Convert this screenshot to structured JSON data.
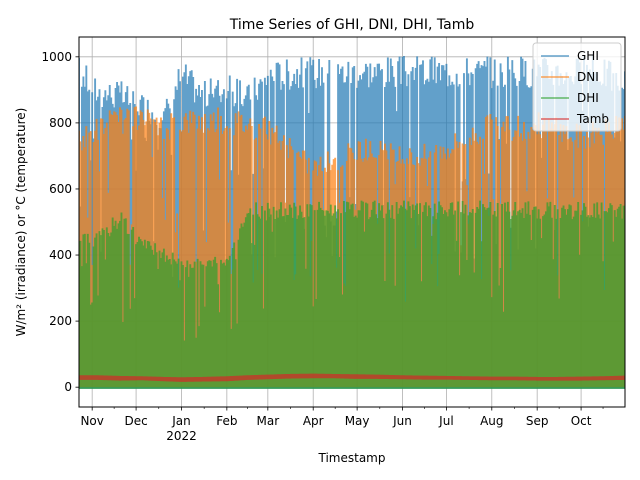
{
  "chart_data": {
    "type": "area",
    "title": "Time Series of GHI, DNI, DHI, Tamb",
    "xlabel": "Timestamp",
    "ylabel": "W/m² (irradiance) or °C (temperature)",
    "ylim": [
      -60,
      1060
    ],
    "yticks": [
      0,
      200,
      400,
      600,
      800,
      1000
    ],
    "xlim": [
      "2021-10-23",
      "2022-10-31"
    ],
    "xticks": [
      {
        "date": "2021-11-01",
        "label": "Nov"
      },
      {
        "date": "2021-12-01",
        "label": "Dec"
      },
      {
        "date": "2022-01-01",
        "label": "Jan",
        "sublabel": "2022"
      },
      {
        "date": "2022-02-01",
        "label": "Feb"
      },
      {
        "date": "2022-03-01",
        "label": "Mar"
      },
      {
        "date": "2022-04-01",
        "label": "Apr"
      },
      {
        "date": "2022-05-01",
        "label": "May"
      },
      {
        "date": "2022-06-01",
        "label": "Jun"
      },
      {
        "date": "2022-07-01",
        "label": "Jul"
      },
      {
        "date": "2022-08-01",
        "label": "Aug"
      },
      {
        "date": "2022-09-01",
        "label": "Sep"
      },
      {
        "date": "2022-10-01",
        "label": "Oct"
      }
    ],
    "grid": true,
    "legend_position": "top-right",
    "series": [
      {
        "name": "GHI",
        "color": "#1f77b4",
        "min": -5,
        "x": [
          "2021-10-23",
          "2021-11-05",
          "2021-11-20",
          "2021-12-05",
          "2021-12-20",
          "2022-01-01",
          "2022-01-15",
          "2022-02-01",
          "2022-02-15",
          "2022-03-01",
          "2022-03-15",
          "2022-04-01",
          "2022-04-15",
          "2022-05-01",
          "2022-05-15",
          "2022-06-01",
          "2022-06-15",
          "2022-07-01",
          "2022-07-15",
          "2022-08-01",
          "2022-08-15",
          "2022-09-01",
          "2022-09-15",
          "2022-10-01",
          "2022-10-15",
          "2022-10-31"
        ],
        "max": [
          1005,
          940,
          930,
          900,
          860,
          1000,
          930,
          950,
          920,
          990,
          1000,
          1005,
          1000,
          1005,
          1005,
          1005,
          1005,
          1005,
          1005,
          1005,
          1005,
          1005,
          1005,
          1005,
          1005,
          970
        ]
      },
      {
        "name": "DNI",
        "color": "#ff7f0e",
        "min": 0,
        "x": [
          "2021-10-23",
          "2021-11-05",
          "2021-11-20",
          "2021-12-05",
          "2021-12-20",
          "2022-01-01",
          "2022-01-15",
          "2022-02-01",
          "2022-02-15",
          "2022-03-01",
          "2022-03-15",
          "2022-04-01",
          "2022-04-15",
          "2022-05-01",
          "2022-05-15",
          "2022-06-01",
          "2022-06-15",
          "2022-07-01",
          "2022-07-15",
          "2022-08-01",
          "2022-08-15",
          "2022-09-01",
          "2022-09-15",
          "2022-10-01",
          "2022-10-15",
          "2022-10-31"
        ],
        "max": [
          780,
          830,
          850,
          850,
          820,
          850,
          850,
          850,
          840,
          820,
          760,
          700,
          720,
          760,
          750,
          730,
          740,
          760,
          800,
          830,
          820,
          840,
          820,
          800,
          810,
          830
        ]
      },
      {
        "name": "DHI",
        "color": "#2ca02c",
        "min": -5,
        "x": [
          "2021-10-23",
          "2021-11-05",
          "2021-11-20",
          "2021-12-05",
          "2021-12-20",
          "2022-01-01",
          "2022-01-15",
          "2022-02-01",
          "2022-02-15",
          "2022-03-01",
          "2022-03-15",
          "2022-04-01",
          "2022-04-15",
          "2022-05-01",
          "2022-05-15",
          "2022-06-01",
          "2022-06-15",
          "2022-07-01",
          "2022-07-15",
          "2022-08-01",
          "2022-08-15",
          "2022-09-01",
          "2022-09-15",
          "2022-10-01",
          "2022-10-15",
          "2022-10-31"
        ],
        "max": [
          480,
          470,
          540,
          460,
          420,
          400,
          390,
          400,
          560,
          560,
          560,
          565,
          565,
          565,
          565,
          565,
          565,
          565,
          565,
          565,
          565,
          565,
          565,
          565,
          565,
          565
        ]
      },
      {
        "name": "Tamb",
        "color": "#d62728",
        "x": [
          "2021-10-23",
          "2021-11-05",
          "2021-11-20",
          "2021-12-05",
          "2021-12-20",
          "2022-01-01",
          "2022-01-15",
          "2022-02-01",
          "2022-02-15",
          "2022-03-01",
          "2022-03-15",
          "2022-04-01",
          "2022-04-15",
          "2022-05-01",
          "2022-05-15",
          "2022-06-01",
          "2022-06-15",
          "2022-07-01",
          "2022-07-15",
          "2022-08-01",
          "2022-08-15",
          "2022-09-01",
          "2022-09-15",
          "2022-10-01",
          "2022-10-15",
          "2022-10-31"
        ],
        "min": [
          22,
          22,
          20,
          21,
          18,
          16,
          17,
          18,
          22,
          24,
          26,
          27,
          27,
          25,
          25,
          24,
          23,
          23,
          22,
          21,
          21,
          20,
          20,
          20,
          21,
          22
        ],
        "max": [
          36,
          36,
          34,
          33,
          31,
          30,
          31,
          33,
          36,
          38,
          40,
          41,
          40,
          39,
          38,
          36,
          35,
          34,
          33,
          32,
          32,
          31,
          31,
          32,
          33,
          35
        ]
      }
    ]
  }
}
